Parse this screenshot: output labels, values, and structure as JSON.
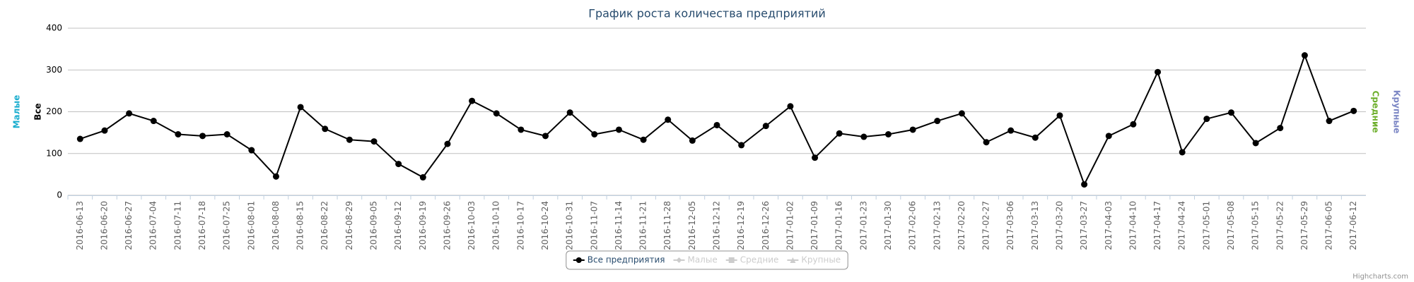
{
  "chart_data": {
    "type": "line",
    "title": "График роста количества предприятий",
    "categories": [
      "2016-06-13",
      "2016-06-20",
      "2016-06-27",
      "2016-07-04",
      "2016-07-11",
      "2016-07-18",
      "2016-07-25",
      "2016-08-01",
      "2016-08-08",
      "2016-08-15",
      "2016-08-22",
      "2016-08-29",
      "2016-09-05",
      "2016-09-12",
      "2016-09-19",
      "2016-09-26",
      "2016-10-03",
      "2016-10-10",
      "2016-10-17",
      "2016-10-24",
      "2016-10-31",
      "2016-11-07",
      "2016-11-14",
      "2016-11-21",
      "2016-11-28",
      "2016-12-05",
      "2016-12-12",
      "2016-12-19",
      "2016-12-26",
      "2017-01-02",
      "2017-01-09",
      "2017-01-16",
      "2017-01-23",
      "2017-01-30",
      "2017-02-06",
      "2017-02-13",
      "2017-02-20",
      "2017-02-27",
      "2017-03-06",
      "2017-03-13",
      "2017-03-20",
      "2017-03-27",
      "2017-04-03",
      "2017-04-10",
      "2017-04-17",
      "2017-04-24",
      "2017-05-01",
      "2017-05-08",
      "2017-05-15",
      "2017-05-22",
      "2017-05-29",
      "2017-06-05",
      "2017-06-12"
    ],
    "series": [
      {
        "name": "Все предприятия",
        "color": "#000000",
        "marker": "circle",
        "visible": true,
        "values": [
          135,
          155,
          196,
          178,
          146,
          142,
          146,
          108,
          45,
          211,
          159,
          133,
          129,
          75,
          43,
          123,
          226,
          196,
          157,
          142,
          198,
          146,
          157,
          133,
          181,
          131,
          168,
          120,
          166,
          213,
          90,
          148,
          140,
          146,
          157,
          178,
          196,
          127,
          155,
          138,
          191,
          26,
          142,
          170,
          295,
          103,
          183,
          198,
          125,
          161,
          335,
          178,
          202
        ]
      },
      {
        "name": "Малые",
        "color": "#cccccc",
        "marker": "diamond",
        "visible": false
      },
      {
        "name": "Средние",
        "color": "#cccccc",
        "marker": "square",
        "visible": false
      },
      {
        "name": "Крупные",
        "color": "#cccccc",
        "marker": "triangle",
        "visible": false
      }
    ],
    "axis_titles": [
      {
        "text": "Малые",
        "color": "#1aadce",
        "side": "left"
      },
      {
        "text": "Все",
        "color": "#000000",
        "side": "left"
      },
      {
        "text": "Средние",
        "color": "#6cae2a",
        "side": "right"
      },
      {
        "text": "Крупные",
        "color": "#7b86c4",
        "side": "right"
      }
    ],
    "ylim": [
      0,
      400
    ],
    "yticks": [
      0,
      100,
      200,
      300,
      400
    ],
    "grid": true,
    "credits": "Highcharts.com"
  }
}
